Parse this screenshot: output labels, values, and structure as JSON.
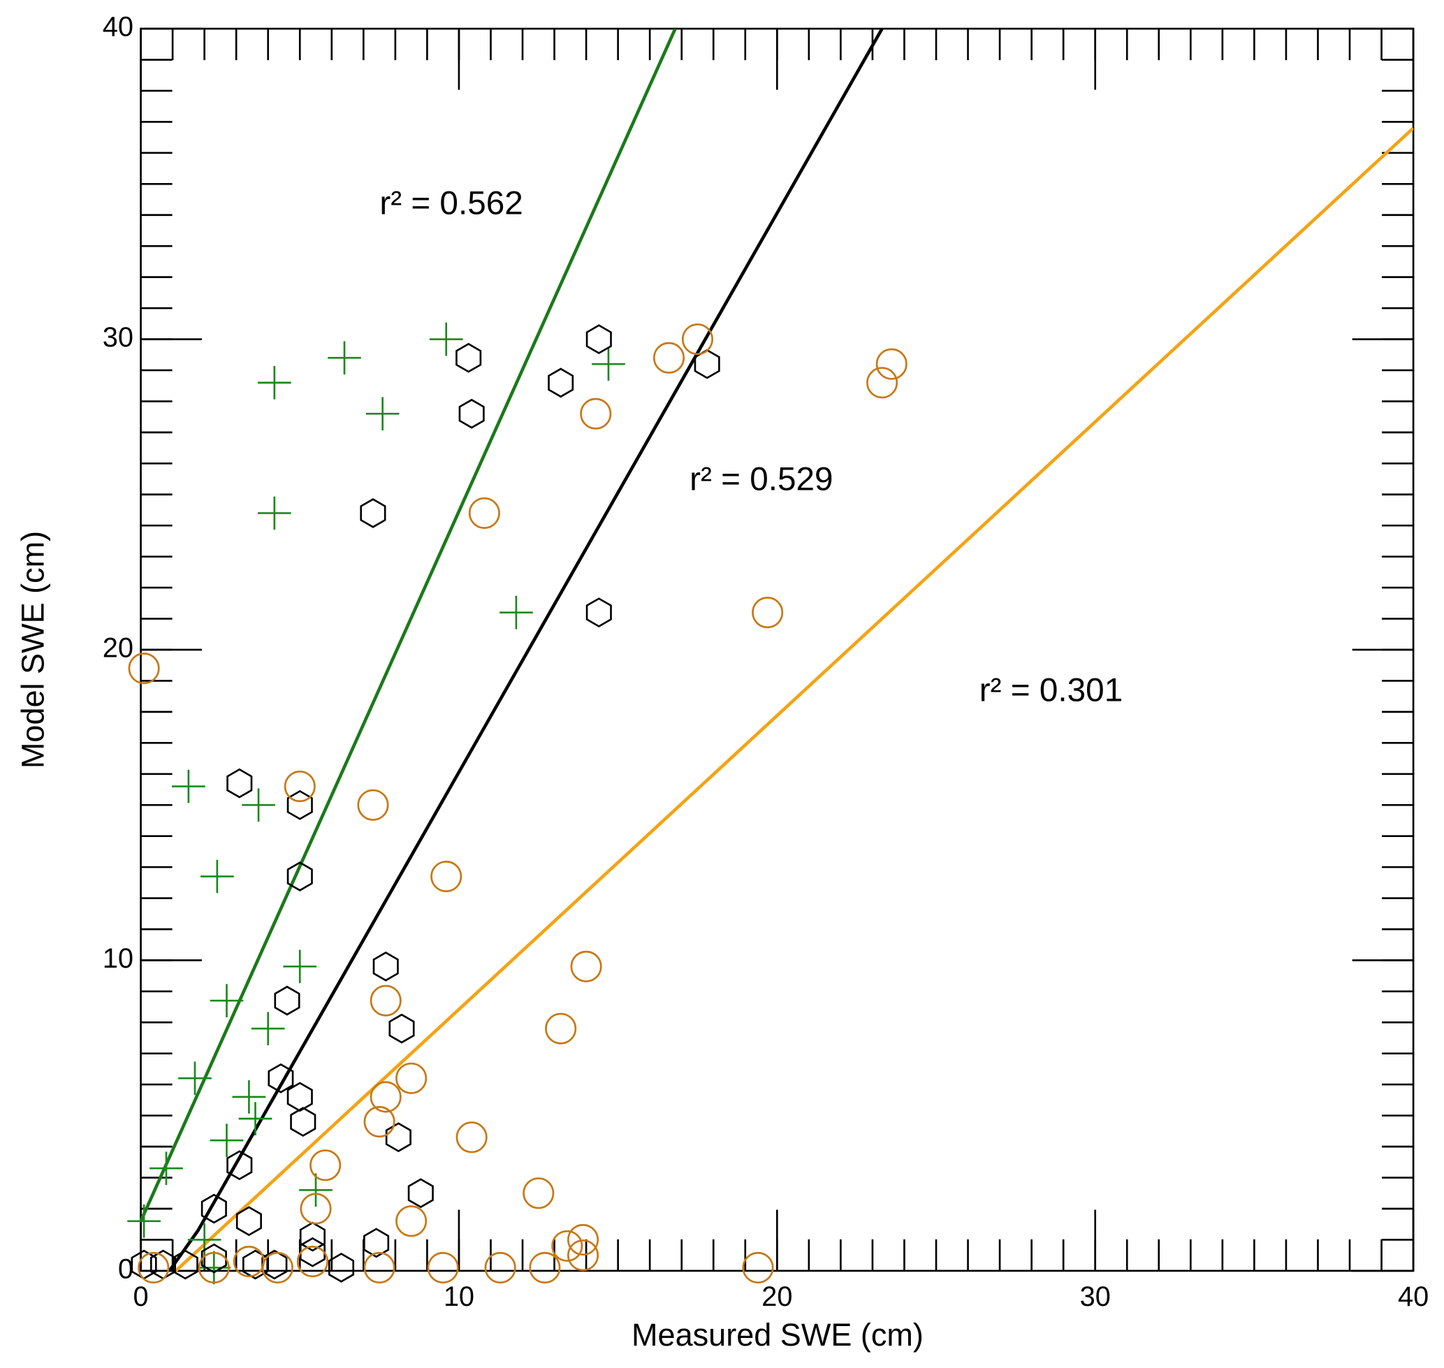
{
  "chart_data": {
    "type": "scatter",
    "xlabel": "Measured SWE (cm)",
    "ylabel": "Model SWE (cm)",
    "xlim": [
      0,
      40
    ],
    "ylim": [
      0,
      40
    ],
    "xticks": [
      0,
      10,
      20,
      30,
      40
    ],
    "yticks": [
      0,
      10,
      20,
      30,
      40
    ],
    "minor_tick_step": 1,
    "series": [
      {
        "marker": "plus",
        "color": "#1a8a1a",
        "x": [
          0.1,
          0.8,
          1.7,
          1.5,
          2.4,
          2.7,
          2.7,
          3.7,
          4.0,
          3.4,
          3.6,
          4.2,
          4.2,
          5.0,
          6.4,
          7.6,
          9.6,
          11.8,
          14.7,
          5.5,
          2.0,
          2.3
        ],
        "values": [
          1.6,
          3.3,
          6.2,
          15.6,
          12.7,
          8.7,
          4.2,
          15.0,
          7.8,
          5.6,
          4.9,
          28.6,
          24.4,
          9.8,
          29.4,
          27.6,
          30.0,
          21.2,
          29.2,
          2.6,
          1.0,
          0.1
        ]
      },
      {
        "marker": "hexagon",
        "color": "#000000",
        "x": [
          0.1,
          0.7,
          1.4,
          2.3,
          2.3,
          3.1,
          3.4,
          3.6,
          4.2,
          3.1,
          5.0,
          5.0,
          4.6,
          4.4,
          5.0,
          5.1,
          5.4,
          5.4,
          6.3,
          7.4,
          7.7,
          8.2,
          8.1,
          8.8,
          7.3,
          10.3,
          10.4,
          13.2,
          14.4,
          14.4,
          17.8
        ],
        "values": [
          0.2,
          0.2,
          0.2,
          0.4,
          2.0,
          3.4,
          1.6,
          0.2,
          0.2,
          15.7,
          15.0,
          12.7,
          8.7,
          6.2,
          5.6,
          4.8,
          1.1,
          0.6,
          0.1,
          0.9,
          9.8,
          7.8,
          4.3,
          2.5,
          24.4,
          29.4,
          27.6,
          28.6,
          30.0,
          21.2,
          29.2
        ]
      },
      {
        "marker": "circle",
        "color": "#c87814",
        "x": [
          0.1,
          0.4,
          2.3,
          3.4,
          4.3,
          5.4,
          5.5,
          5.8,
          5.0,
          7.3,
          7.5,
          7.5,
          7.7,
          7.7,
          8.5,
          8.5,
          9.6,
          9.5,
          10.4,
          11.3,
          10.8,
          12.5,
          12.7,
          13.4,
          13.2,
          13.9,
          13.9,
          14.0,
          14.3,
          16.6,
          17.5,
          19.4,
          19.7,
          23.3,
          23.6
        ],
        "values": [
          19.4,
          0.1,
          0.1,
          0.3,
          0.1,
          0.3,
          2.0,
          3.4,
          15.6,
          15.0,
          0.1,
          4.8,
          5.6,
          8.7,
          1.6,
          6.2,
          12.7,
          0.1,
          4.3,
          0.1,
          24.4,
          2.5,
          0.1,
          0.8,
          7.8,
          1.0,
          0.5,
          9.8,
          27.6,
          29.4,
          30.0,
          0.1,
          21.2,
          28.6,
          29.2
        ]
      }
    ],
    "fit_lines": [
      {
        "color": "#1a7a1a",
        "x": [
          0,
          16.8
        ],
        "values": [
          1.6,
          40
        ]
      },
      {
        "color": "#000000",
        "x": [
          0.9,
          1.8,
          23.3
        ],
        "values": [
          0,
          1.3,
          40
        ]
      },
      {
        "color": "#f5a312",
        "x": [
          1.1,
          40
        ],
        "values": [
          0,
          36.8
        ]
      }
    ],
    "annotations": [
      {
        "text": "r² = 0.562",
        "color": "#1a7a1a"
      },
      {
        "text": "r² = 0.529",
        "color": "#000000"
      },
      {
        "text": "r² = 0.301",
        "color": "#f5a312"
      }
    ]
  }
}
